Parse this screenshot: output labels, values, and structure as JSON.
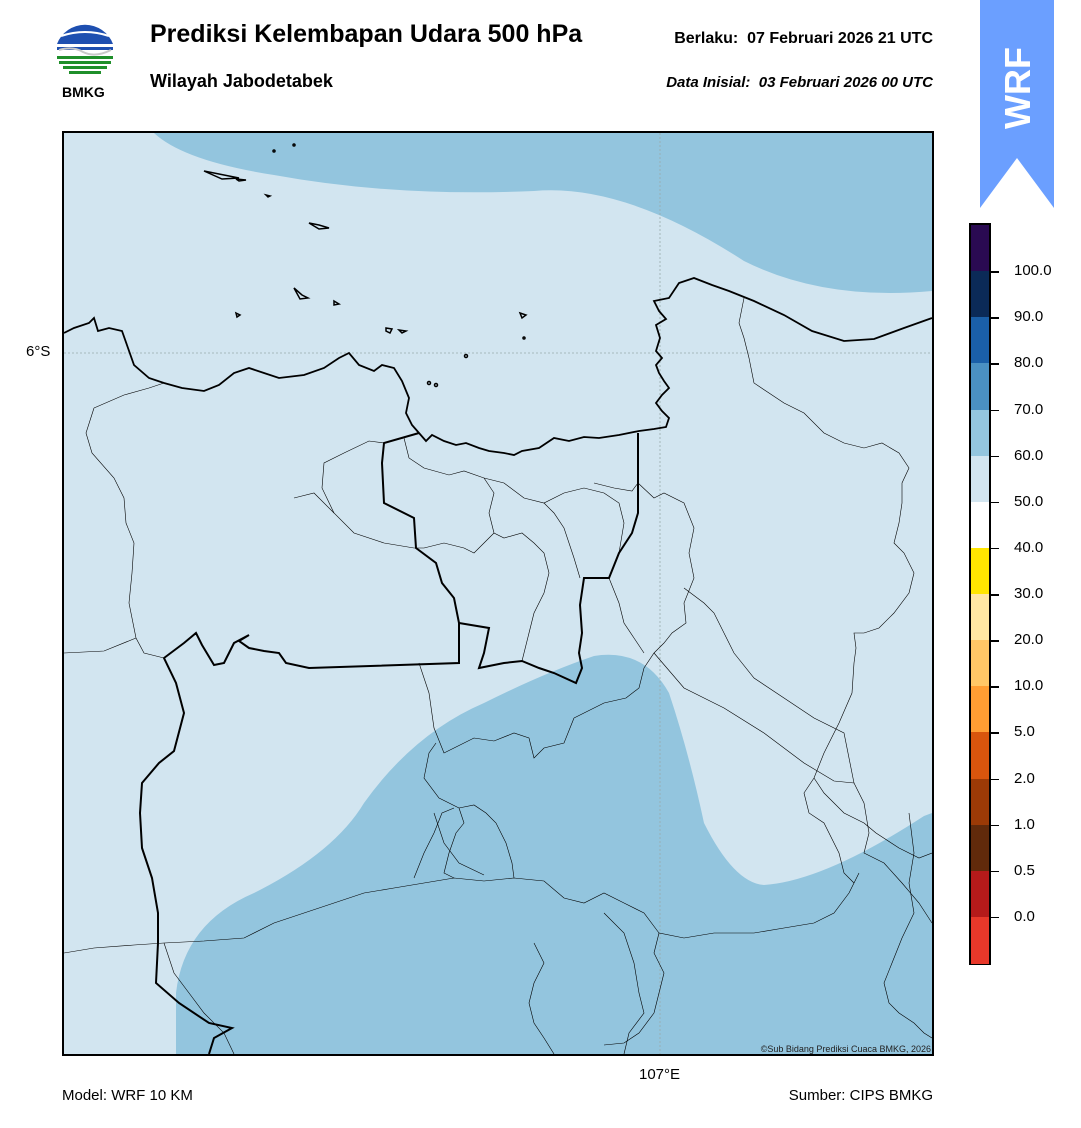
{
  "header": {
    "title": "Prediksi Kelembapan Udara 500 hPa",
    "region": "Wilayah Jabodetabek",
    "valid_label": "Berlaku:",
    "valid_time": "07 Februari 2026 21 UTC",
    "init_label": "Data Inisial:",
    "init_time": "03 Februari 2026 00 UTC"
  },
  "logo": {
    "name": "BMKG"
  },
  "badge": {
    "text": "WRF",
    "color": "#6b9fff"
  },
  "map": {
    "lat_label": "6°S",
    "lon_label": "107°E",
    "credit": "©Sub Bidang Prediksi Cuaca BMKG, 2026",
    "background_fill_color": "#d2e5f0",
    "humid_fill_color": "#93c5de"
  },
  "colorbar": {
    "ticks": [
      "100.0",
      "90.0",
      "80.0",
      "70.0",
      "60.0",
      "50.0",
      "40.0",
      "30.0",
      "20.0",
      "10.0",
      "5.0",
      "2.0",
      "1.0",
      "0.5",
      "0.0"
    ],
    "colors_top_to_bottom": [
      "#2a0a52",
      "#0b2a57",
      "#1a5fa8",
      "#4a90c2",
      "#93c5de",
      "#d2e5f0",
      "#ffffff",
      "#ffe600",
      "#ffe7a3",
      "#ffc766",
      "#ff9e33",
      "#d9550d",
      "#9c3a06",
      "#612a0b",
      "#b51a1a",
      "#e8382a"
    ]
  },
  "footer": {
    "model": "Model: WRF 10 KM",
    "source": "Sumber: CIPS BMKG"
  }
}
